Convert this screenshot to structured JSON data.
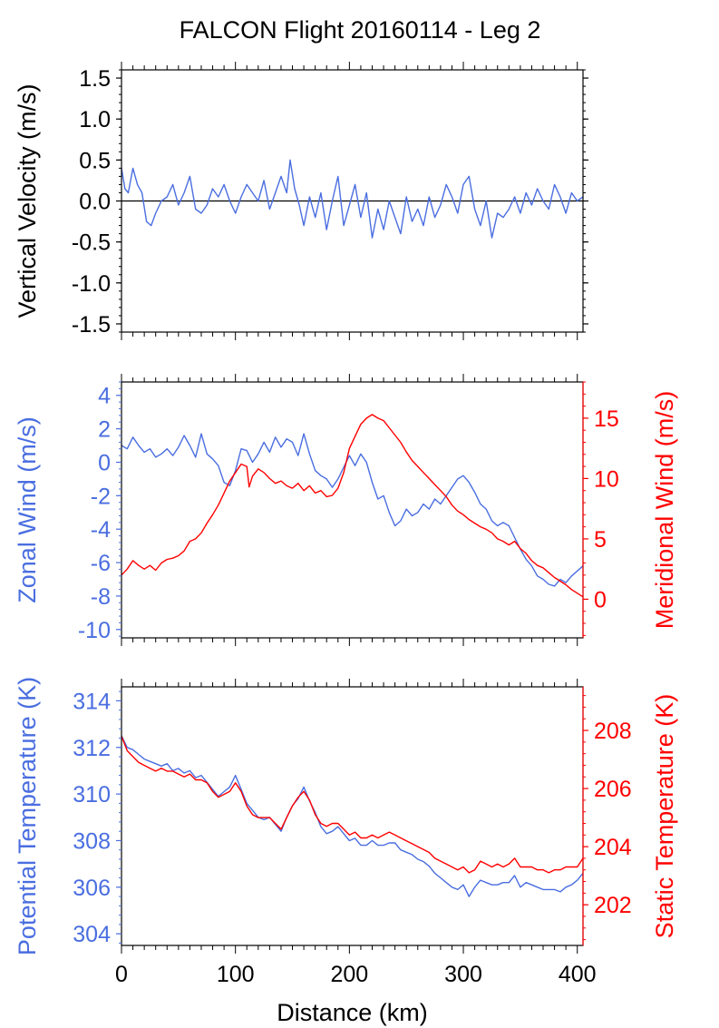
{
  "title": "FALCON Flight 20160114 - Leg 2",
  "colors": {
    "blue": "#4a6ee0",
    "red": "#ff0000",
    "black": "#000000"
  },
  "chart_data": [
    {
      "type": "line",
      "panel": "vertical-velocity",
      "title": "FALCON Flight 20160114 - Leg 2",
      "xlabel": "",
      "ylabel": "Vertical Velocity (m/s)",
      "xlim": [
        0,
        405
      ],
      "ylim": [
        -1.6,
        1.6
      ],
      "xticks": [
        0,
        100,
        200,
        300,
        400
      ],
      "yticks": [
        -1.5,
        -1.0,
        -0.5,
        0.0,
        0.5,
        1.0,
        1.5
      ],
      "ytick_labels": [
        "-1.5",
        "-1.0",
        "-0.5",
        "0.0",
        "0.5",
        "1.0",
        "1.5"
      ],
      "zero_line": true,
      "series": [
        {
          "color": "#4a6ee0",
          "x": [
            0,
            3,
            6,
            10,
            14,
            18,
            22,
            26,
            30,
            35,
            40,
            45,
            50,
            55,
            60,
            65,
            70,
            75,
            80,
            85,
            90,
            95,
            100,
            105,
            110,
            115,
            120,
            125,
            130,
            135,
            140,
            145,
            148,
            152,
            156,
            160,
            165,
            170,
            175,
            180,
            185,
            190,
            195,
            200,
            205,
            210,
            215,
            220,
            225,
            230,
            235,
            240,
            245,
            250,
            255,
            260,
            265,
            270,
            275,
            280,
            285,
            290,
            295,
            300,
            305,
            310,
            315,
            320,
            325,
            330,
            335,
            340,
            345,
            350,
            355,
            360,
            365,
            370,
            375,
            380,
            385,
            390,
            395,
            400,
            405
          ],
          "values": [
            0.4,
            0.15,
            0.1,
            0.4,
            0.2,
            0.1,
            -0.25,
            -0.3,
            -0.15,
            0.0,
            0.05,
            0.2,
            -0.05,
            0.1,
            0.3,
            -0.1,
            -0.15,
            -0.05,
            0.15,
            0.05,
            0.2,
            0.0,
            -0.15,
            0.05,
            0.2,
            0.1,
            0.0,
            0.25,
            -0.1,
            0.1,
            0.3,
            0.1,
            0.5,
            0.15,
            -0.05,
            -0.3,
            0.05,
            -0.2,
            0.1,
            -0.35,
            0.0,
            0.3,
            -0.3,
            -0.05,
            0.2,
            -0.2,
            0.1,
            -0.45,
            -0.1,
            -0.35,
            0.0,
            -0.2,
            -0.4,
            0.05,
            -0.25,
            -0.1,
            -0.3,
            0.05,
            -0.2,
            -0.05,
            0.2,
            0.05,
            -0.15,
            0.2,
            0.3,
            -0.1,
            -0.3,
            0.0,
            -0.45,
            -0.15,
            -0.2,
            -0.1,
            0.05,
            -0.15,
            0.1,
            -0.05,
            0.15,
            0.0,
            -0.1,
            0.2,
            0.05,
            -0.15,
            0.1,
            0.0,
            0.05
          ]
        }
      ]
    },
    {
      "type": "line",
      "panel": "winds",
      "xlabel": "",
      "ylabel": "Zonal Wind (m/s)",
      "ylabel_right": "Meridional Wind (m/s)",
      "xlim": [
        0,
        405
      ],
      "ylim": [
        -10.5,
        4.8
      ],
      "ylim_right": [
        -3.2,
        18
      ],
      "xticks": [
        0,
        100,
        200,
        300,
        400
      ],
      "yticks": [
        -10,
        -8,
        -6,
        -4,
        -2,
        0,
        2,
        4
      ],
      "ytick_labels": [
        "-10",
        "-8",
        "-6",
        "-4",
        "-2",
        "0",
        "2",
        "4"
      ],
      "yticks_right": [
        0,
        5,
        10,
        15
      ],
      "ytick_labels_right": [
        "0",
        "5",
        "10",
        "15"
      ],
      "series": [
        {
          "name": "Zonal Wind",
          "axis": "left",
          "color": "#4a6ee0",
          "x": [
            0,
            5,
            10,
            15,
            20,
            25,
            30,
            35,
            40,
            45,
            50,
            55,
            60,
            65,
            70,
            75,
            80,
            85,
            90,
            95,
            100,
            105,
            110,
            115,
            120,
            125,
            130,
            135,
            140,
            145,
            150,
            155,
            160,
            165,
            170,
            175,
            180,
            185,
            190,
            195,
            200,
            205,
            210,
            215,
            220,
            225,
            230,
            235,
            240,
            245,
            250,
            255,
            260,
            265,
            270,
            275,
            280,
            285,
            290,
            295,
            300,
            305,
            310,
            315,
            320,
            325,
            330,
            335,
            340,
            345,
            350,
            355,
            360,
            365,
            370,
            375,
            380,
            385,
            390,
            395,
            400,
            405
          ],
          "values": [
            1.0,
            0.8,
            1.5,
            1.0,
            0.6,
            0.8,
            0.3,
            0.5,
            0.8,
            0.4,
            0.9,
            1.6,
            1.0,
            0.3,
            1.7,
            0.5,
            0.2,
            -0.2,
            -1.2,
            -1.4,
            -0.5,
            0.8,
            0.7,
            0.0,
            0.5,
            1.2,
            0.6,
            1.5,
            0.9,
            1.4,
            1.2,
            0.4,
            1.7,
            0.5,
            -0.5,
            -0.8,
            -1.0,
            -1.5,
            -1.0,
            -0.3,
            0.4,
            -0.2,
            0.5,
            0.0,
            -1.2,
            -2.2,
            -2.0,
            -3.0,
            -3.8,
            -3.5,
            -2.8,
            -3.2,
            -3.0,
            -2.5,
            -2.8,
            -2.2,
            -2.5,
            -2.0,
            -1.5,
            -1.0,
            -0.8,
            -1.2,
            -1.8,
            -2.5,
            -2.8,
            -3.5,
            -3.8,
            -3.6,
            -3.8,
            -4.5,
            -5.2,
            -5.8,
            -6.2,
            -6.8,
            -7.0,
            -7.3,
            -7.4,
            -7.0,
            -7.2,
            -6.8,
            -6.5,
            -6.2
          ]
        },
        {
          "name": "Meridional Wind",
          "axis": "right",
          "color": "#ff0000",
          "x": [
            0,
            5,
            10,
            15,
            20,
            25,
            30,
            35,
            40,
            45,
            50,
            55,
            60,
            65,
            70,
            75,
            80,
            85,
            90,
            95,
            100,
            105,
            110,
            112,
            115,
            120,
            125,
            130,
            135,
            140,
            145,
            150,
            155,
            160,
            165,
            170,
            175,
            180,
            185,
            190,
            195,
            200,
            205,
            210,
            215,
            220,
            225,
            230,
            235,
            240,
            245,
            250,
            255,
            260,
            265,
            270,
            275,
            280,
            285,
            290,
            295,
            300,
            305,
            310,
            315,
            320,
            325,
            330,
            335,
            340,
            345,
            350,
            355,
            360,
            365,
            370,
            375,
            380,
            385,
            390,
            395,
            400,
            405
          ],
          "values": [
            2.0,
            2.5,
            3.2,
            2.8,
            2.5,
            2.8,
            2.4,
            3.0,
            3.3,
            3.4,
            3.6,
            4.0,
            4.8,
            5.0,
            5.5,
            6.3,
            7.0,
            7.8,
            8.8,
            9.8,
            10.5,
            11.2,
            11.0,
            9.3,
            10.2,
            10.8,
            10.5,
            10.0,
            9.6,
            9.8,
            9.4,
            9.2,
            9.6,
            9.0,
            9.4,
            8.8,
            9.0,
            8.5,
            8.6,
            9.2,
            10.5,
            12.5,
            13.5,
            14.5,
            15.0,
            15.3,
            15.0,
            14.8,
            14.2,
            13.6,
            13.0,
            12.2,
            11.5,
            11.0,
            10.5,
            10.0,
            9.5,
            9.0,
            8.5,
            7.8,
            7.3,
            7.0,
            6.6,
            6.3,
            6.0,
            5.8,
            5.5,
            5.0,
            4.8,
            4.5,
            4.8,
            4.2,
            3.8,
            3.2,
            2.8,
            2.6,
            2.2,
            1.8,
            1.5,
            1.2,
            0.8,
            0.5,
            0.2
          ]
        }
      ]
    },
    {
      "type": "line",
      "panel": "temperature",
      "xlabel": "Distance (km)",
      "ylabel": "Potential Temperature (K)",
      "ylabel_right": "Static Temperature (K)",
      "xlim": [
        0,
        405
      ],
      "ylim": [
        303.5,
        314.6
      ],
      "ylim_right": [
        200.6,
        209.5
      ],
      "xticks": [
        0,
        100,
        200,
        300,
        400
      ],
      "xtick_labels": [
        "0",
        "100",
        "200",
        "300",
        "400"
      ],
      "yticks": [
        304,
        306,
        308,
        310,
        312,
        314
      ],
      "ytick_labels": [
        "304",
        "306",
        "308",
        "310",
        "312",
        "314"
      ],
      "yticks_right": [
        202,
        204,
        206,
        208
      ],
      "ytick_labels_right": [
        "202",
        "204",
        "206",
        "208"
      ],
      "series": [
        {
          "name": "Potential Temperature",
          "axis": "left",
          "color": "#4a6ee0",
          "x": [
            0,
            5,
            10,
            15,
            20,
            25,
            30,
            35,
            40,
            45,
            50,
            55,
            60,
            65,
            70,
            75,
            80,
            85,
            90,
            95,
            100,
            105,
            110,
            115,
            120,
            125,
            130,
            135,
            140,
            145,
            150,
            155,
            160,
            165,
            170,
            175,
            180,
            185,
            190,
            195,
            200,
            205,
            210,
            215,
            220,
            225,
            230,
            235,
            240,
            245,
            250,
            255,
            260,
            265,
            270,
            275,
            280,
            285,
            290,
            295,
            300,
            305,
            310,
            315,
            320,
            325,
            330,
            335,
            340,
            345,
            350,
            355,
            360,
            365,
            370,
            375,
            380,
            385,
            390,
            395,
            400,
            405
          ],
          "values": [
            312.5,
            312.0,
            311.9,
            311.7,
            311.5,
            311.4,
            311.3,
            311.2,
            311.3,
            311.0,
            311.1,
            310.9,
            311.0,
            310.7,
            310.8,
            310.5,
            310.2,
            309.9,
            310.1,
            310.3,
            310.8,
            310.2,
            309.6,
            309.3,
            309.0,
            308.9,
            309.0,
            308.7,
            308.4,
            309.0,
            309.5,
            309.8,
            310.3,
            309.7,
            309.2,
            308.6,
            308.3,
            308.4,
            308.6,
            308.3,
            308.0,
            308.1,
            307.8,
            307.8,
            308.0,
            307.8,
            307.8,
            307.9,
            307.9,
            307.6,
            307.5,
            307.4,
            307.2,
            307.1,
            306.9,
            306.6,
            306.4,
            306.2,
            306.0,
            305.9,
            306.1,
            305.6,
            306.0,
            306.3,
            306.2,
            306.1,
            306.1,
            306.2,
            306.2,
            306.5,
            306.0,
            306.2,
            306.1,
            306.0,
            305.9,
            305.9,
            305.9,
            305.8,
            306.0,
            306.1,
            306.3,
            306.6
          ]
        },
        {
          "name": "Static Temperature",
          "axis": "right",
          "color": "#ff0000",
          "x": [
            0,
            5,
            10,
            15,
            20,
            25,
            30,
            35,
            40,
            45,
            50,
            55,
            60,
            65,
            70,
            75,
            80,
            85,
            90,
            95,
            100,
            105,
            110,
            115,
            120,
            125,
            130,
            135,
            140,
            145,
            150,
            155,
            160,
            165,
            170,
            175,
            180,
            185,
            190,
            195,
            200,
            205,
            210,
            215,
            220,
            225,
            230,
            235,
            240,
            245,
            250,
            255,
            260,
            265,
            270,
            275,
            280,
            285,
            290,
            295,
            300,
            305,
            310,
            315,
            320,
            325,
            330,
            335,
            340,
            345,
            350,
            355,
            360,
            365,
            370,
            375,
            380,
            385,
            390,
            395,
            400,
            405
          ],
          "values": [
            207.8,
            207.3,
            207.1,
            206.9,
            206.8,
            206.7,
            206.6,
            206.7,
            206.6,
            206.6,
            206.5,
            206.4,
            206.5,
            206.3,
            206.3,
            206.2,
            205.9,
            205.7,
            205.8,
            205.9,
            206.2,
            205.9,
            205.4,
            205.1,
            205.0,
            205.0,
            205.0,
            204.8,
            204.6,
            205.0,
            205.4,
            205.7,
            205.9,
            205.6,
            205.1,
            204.8,
            204.7,
            204.8,
            204.8,
            204.6,
            204.4,
            204.5,
            204.3,
            204.3,
            204.4,
            204.3,
            204.4,
            204.5,
            204.4,
            204.3,
            204.2,
            204.1,
            204.0,
            203.9,
            203.8,
            203.6,
            203.5,
            203.4,
            203.3,
            203.2,
            203.3,
            203.1,
            203.2,
            203.5,
            203.4,
            203.3,
            203.4,
            203.3,
            203.4,
            203.6,
            203.3,
            203.3,
            203.3,
            203.2,
            203.2,
            203.1,
            203.2,
            203.2,
            203.3,
            203.3,
            203.3,
            203.6
          ]
        }
      ]
    }
  ]
}
